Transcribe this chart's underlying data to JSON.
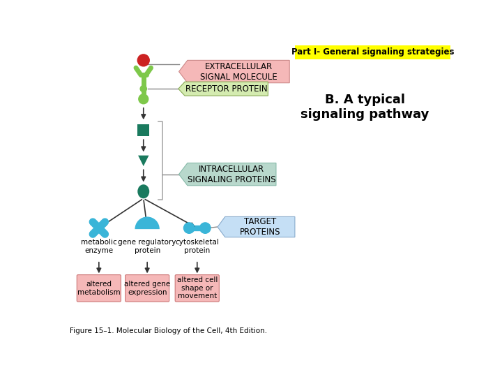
{
  "title": "Part I- General signaling strategies",
  "subtitle": "B. A typical\nsignaling pathway",
  "caption": "Figure 15–1. Molecular Biology of the Cell, 4th Edition.",
  "title_bg": "#ffff00",
  "title_color": "#000000",
  "bg_color": "#ffffff",
  "label_extracellular": "EXTRACELLULAR\nSIGNAL MOLECULE",
  "label_receptor": "RECEPTOR PROTEIN",
  "label_intracellular": "INTRACELLULAR\nSIGNALING PROTEINS",
  "label_target": "TARGET\nPROTEINS",
  "color_receptor_shape": "#7ec84a",
  "color_signal_molecule": "#cc2222",
  "color_dark_green": "#1a7a5e",
  "color_cyan_blue": "#3ab5d8",
  "color_extracellular_bg": "#f5b8b8",
  "color_receptor_bg": "#d4ebb0",
  "color_intracellular_bg": "#b8d8cc",
  "color_target_bg": "#c5dff5",
  "color_outcome_bg": "#f5b8b8",
  "label_metabolic": "metabolic\nenzyme",
  "label_gene_reg": "gene regulatory\nprotein",
  "label_cytoskeletal": "cytoskeletal\nprotein",
  "label_altered_metab": "altered\nmetabolism",
  "label_altered_gene": "altered gene\nexpression",
  "label_altered_cell": "altered cell\nshape or\nmovement"
}
